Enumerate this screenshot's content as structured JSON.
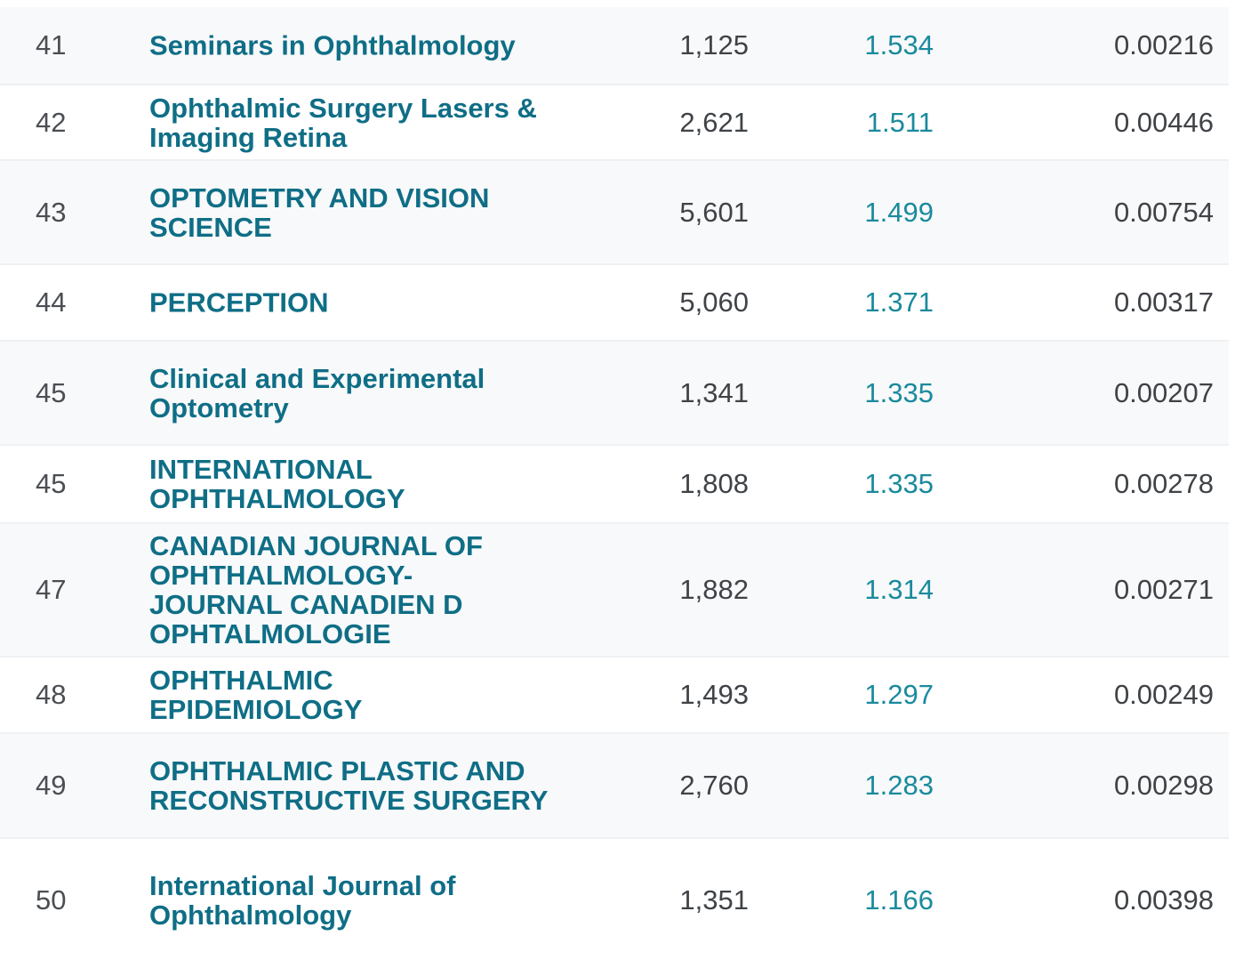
{
  "rows": [
    {
      "rank": "41",
      "title": "Seminars in Ophthalmology",
      "total_cites": "1,125",
      "impact_factor": "1.534",
      "eigenfactor": "0.00216"
    },
    {
      "rank": "42",
      "title": "Ophthalmic Surgery Lasers & Imaging Retina",
      "total_cites": "2,621",
      "impact_factor": "1.511",
      "eigenfactor": "0.00446"
    },
    {
      "rank": "43",
      "title": "OPTOMETRY AND VISION SCIENCE",
      "total_cites": "5,601",
      "impact_factor": "1.499",
      "eigenfactor": "0.00754"
    },
    {
      "rank": "44",
      "title": "PERCEPTION",
      "total_cites": "5,060",
      "impact_factor": "1.371",
      "eigenfactor": "0.00317"
    },
    {
      "rank": "45",
      "title": "Clinical and Experimental Optometry",
      "total_cites": "1,341",
      "impact_factor": "1.335",
      "eigenfactor": "0.00207"
    },
    {
      "rank": "45",
      "title": "INTERNATIONAL OPHTHALMOLOGY",
      "total_cites": "1,808",
      "impact_factor": "1.335",
      "eigenfactor": "0.00278"
    },
    {
      "rank": "47",
      "title": "CANADIAN JOURNAL OF OPHTHALMOLOGY-JOURNAL CANADIEN D OPHTALMOLOGIE",
      "total_cites": "1,882",
      "impact_factor": "1.314",
      "eigenfactor": "0.00271"
    },
    {
      "rank": "48",
      "title": "OPHTHALMIC EPIDEMIOLOGY",
      "total_cites": "1,493",
      "impact_factor": "1.297",
      "eigenfactor": "0.00249"
    },
    {
      "rank": "49",
      "title": "OPHTHALMIC PLASTIC AND RECONSTRUCTIVE SURGERY",
      "total_cites": "2,760",
      "impact_factor": "1.283",
      "eigenfactor": "0.00298"
    },
    {
      "rank": "50",
      "title": "International Journal of Ophthalmology",
      "total_cites": "1,351",
      "impact_factor": "1.166",
      "eigenfactor": "0.00398"
    }
  ]
}
